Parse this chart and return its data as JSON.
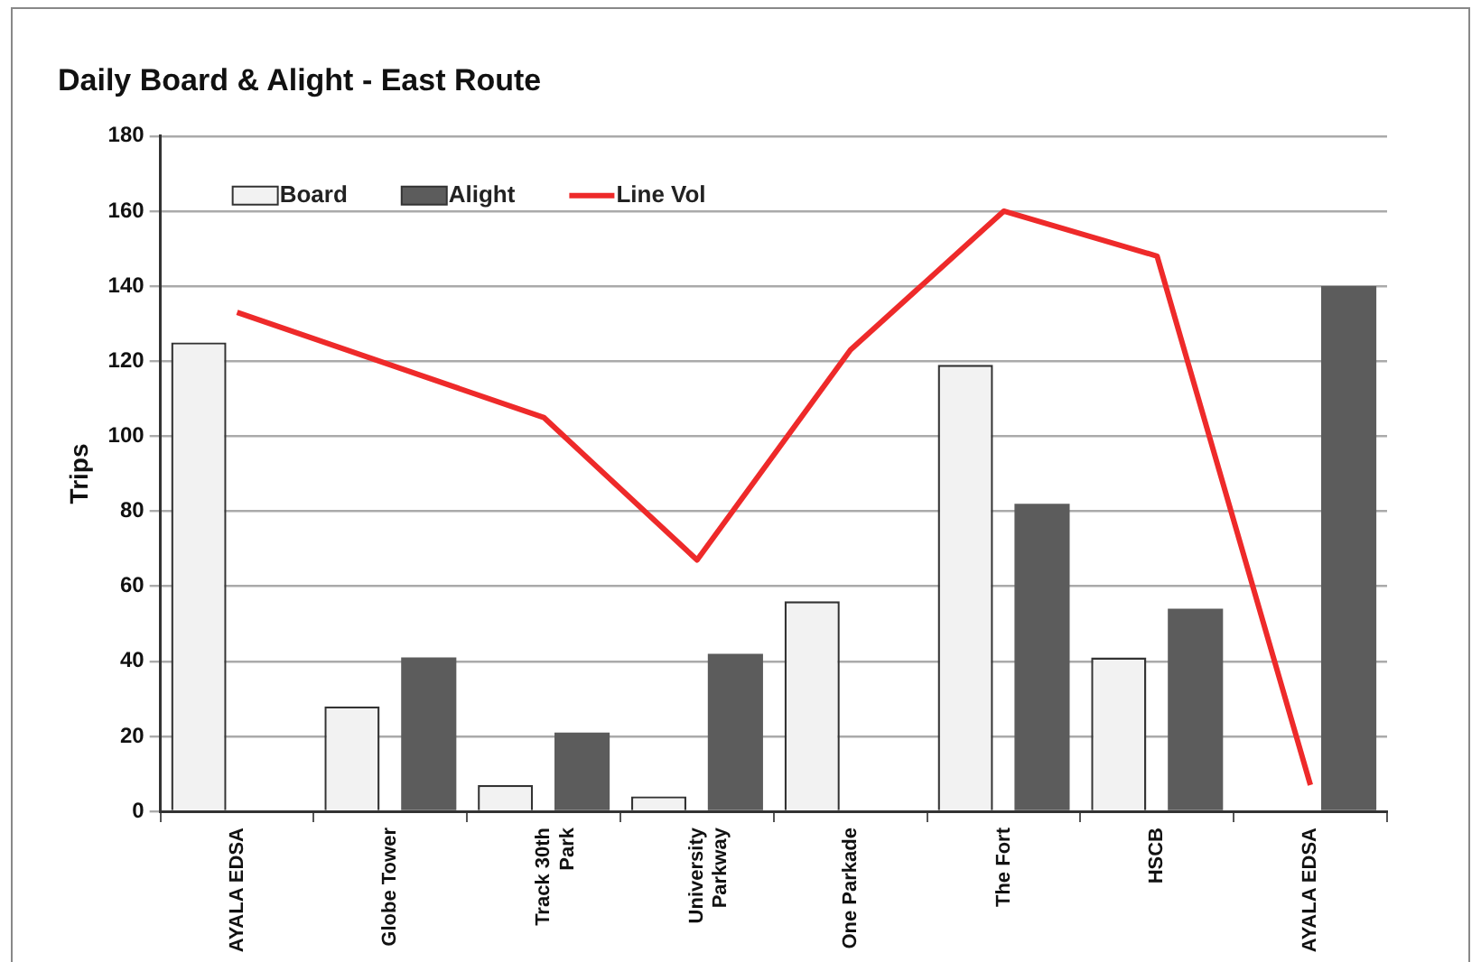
{
  "chart_data": {
    "type": "bar",
    "title": "Daily Board & Alight - East Route",
    "ylabel": "Trips",
    "categories": [
      "AYALA EDSA",
      "Globe Tower",
      "Track 30th Park",
      "University Parkway",
      "One Parkade",
      "The Fort",
      "HSCB",
      "AYALA EDSA"
    ],
    "series": [
      {
        "name": "Board",
        "color": "#f2f2f2",
        "values": [
          125,
          28,
          7,
          4,
          56,
          119,
          41,
          0
        ]
      },
      {
        "name": "Alight",
        "color": "#5c5c5c",
        "values": [
          0,
          41,
          21,
          42,
          0,
          82,
          54,
          140
        ]
      },
      {
        "name": "Line Vol",
        "type": "line",
        "color": "#ee2a2a",
        "values": [
          133,
          119,
          105,
          67,
          123,
          160,
          148,
          7
        ]
      }
    ],
    "ylim": [
      0,
      180
    ],
    "yticks": [
      0,
      20,
      40,
      60,
      80,
      100,
      120,
      140,
      160,
      180
    ],
    "grid": "y",
    "legend": "top left",
    "marker": "none"
  }
}
